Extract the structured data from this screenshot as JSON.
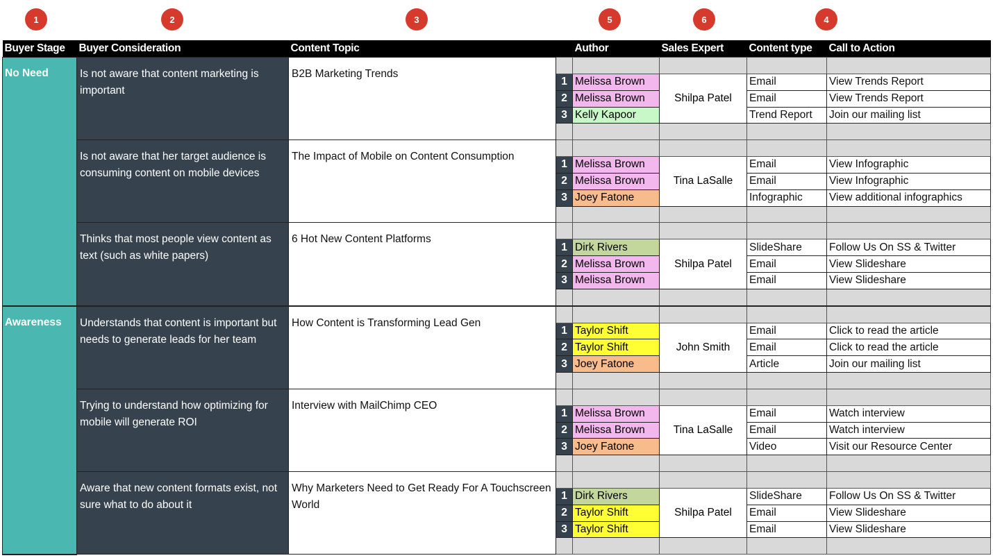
{
  "badges": [
    {
      "n": "1"
    },
    {
      "n": "2"
    },
    {
      "n": "3"
    },
    {
      "n": "5"
    },
    {
      "n": "6"
    },
    {
      "n": "4"
    }
  ],
  "headers": [
    "Buyer Stage",
    "Buyer Consideration",
    "Content Topic",
    "",
    "Author",
    "Sales Expert",
    "Content type",
    "Call to Action"
  ],
  "author_colors": {
    "Melissa Brown": "#f2b8ee",
    "Kelly Kapoor": "#c8f7c8",
    "Joey Fatone": "#f7bb8c",
    "Dirk Rivers": "#c3d69b",
    "Taylor Shift": "#ffff33"
  },
  "stages": [
    {
      "name": "No Need",
      "groups": [
        {
          "consideration": "Is not aware that content marketing is important",
          "topic": "B2B Marketing Trends",
          "expert": "Shilpa Patel",
          "rows": [
            {
              "n": "1",
              "author": "Melissa Brown",
              "type": "Email",
              "cta": "View Trends Report"
            },
            {
              "n": "2",
              "author": "Melissa Brown",
              "type": "Email",
              "cta": "View Trends Report"
            },
            {
              "n": "3",
              "author": "Kelly Kapoor",
              "type": "Trend Report",
              "cta": "Join our mailing list"
            }
          ]
        },
        {
          "consideration": "Is not aware that her target audience is consuming content on mobile devices",
          "topic": "The Impact of Mobile on Content Consumption",
          "expert": "Tina LaSalle",
          "rows": [
            {
              "n": "1",
              "author": "Melissa Brown",
              "type": "Email",
              "cta": "View Infographic"
            },
            {
              "n": "2",
              "author": "Melissa Brown",
              "type": "Email",
              "cta": "View Infographic"
            },
            {
              "n": "3",
              "author": "Joey Fatone",
              "type": "Infographic",
              "cta": "View additional infographics"
            }
          ]
        },
        {
          "consideration": "Thinks that most people view content as text (such as white papers)",
          "topic": "6 Hot New Content Platforms",
          "expert": "Shilpa Patel",
          "rows": [
            {
              "n": "1",
              "author": "Dirk Rivers",
              "type": "SlideShare",
              "cta": "Follow Us On SS & Twitter"
            },
            {
              "n": "2",
              "author": "Melissa Brown",
              "type": "Email",
              "cta": "View Slideshare"
            },
            {
              "n": "3",
              "author": "Melissa Brown",
              "type": "Email",
              "cta": "View Slideshare"
            }
          ]
        }
      ]
    },
    {
      "name": "Awareness",
      "groups": [
        {
          "consideration": "Understands that content is important but needs to generate leads for her team",
          "topic": "How Content is Transforming Lead Gen",
          "expert": "John Smith",
          "rows": [
            {
              "n": "1",
              "author": "Taylor Shift",
              "type": "Email",
              "cta": "Click to read the article"
            },
            {
              "n": "2",
              "author": "Taylor Shift",
              "type": "Email",
              "cta": "Click to read the article"
            },
            {
              "n": "3",
              "author": "Joey Fatone",
              "type": "Article",
              "cta": "Join our mailing list"
            }
          ]
        },
        {
          "consideration": "Trying to understand how optimizing for mobile will generate ROI",
          "topic": "Interview with MailChimp CEO",
          "expert": "Tina LaSalle",
          "rows": [
            {
              "n": "1",
              "author": "Melissa Brown",
              "type": "Email",
              "cta": "Watch interview"
            },
            {
              "n": "2",
              "author": "Melissa Brown",
              "type": "Email",
              "cta": "Watch interview"
            },
            {
              "n": "3",
              "author": "Joey Fatone",
              "type": "Video",
              "cta": "Visit our Resource Center"
            }
          ]
        },
        {
          "consideration": "Aware that new content formats exist, not sure what to do about it",
          "topic": "Why Marketers Need to Get Ready For A Touchscreen World",
          "expert": "Shilpa Patel",
          "rows": [
            {
              "n": "1",
              "author": "Dirk Rivers",
              "type": "SlideShare",
              "cta": "Follow Us On SS & Twitter"
            },
            {
              "n": "2",
              "author": "Taylor Shift",
              "type": "Email",
              "cta": "View Slideshare"
            },
            {
              "n": "3",
              "author": "Taylor Shift",
              "type": "Email",
              "cta": "View Slideshare"
            }
          ]
        }
      ]
    }
  ]
}
